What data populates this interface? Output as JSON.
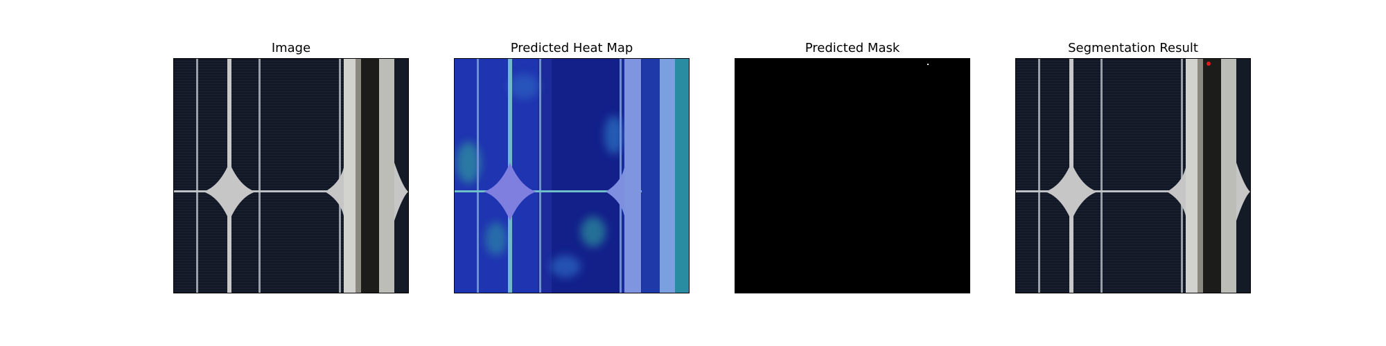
{
  "figure": {
    "panels": [
      {
        "title": "Image"
      },
      {
        "title": "Predicted Heat Map"
      },
      {
        "title": "Predicted Mask"
      },
      {
        "title": "Segmentation Result"
      }
    ]
  },
  "colors": {
    "cell_dark": "#121826",
    "busbar": "#c9c9c9",
    "heatmap_base": "#1a2aa0",
    "heatmap_hot": "#2fa89a",
    "mask_bg": "#000000",
    "defect_marker": "#e01a1a"
  }
}
